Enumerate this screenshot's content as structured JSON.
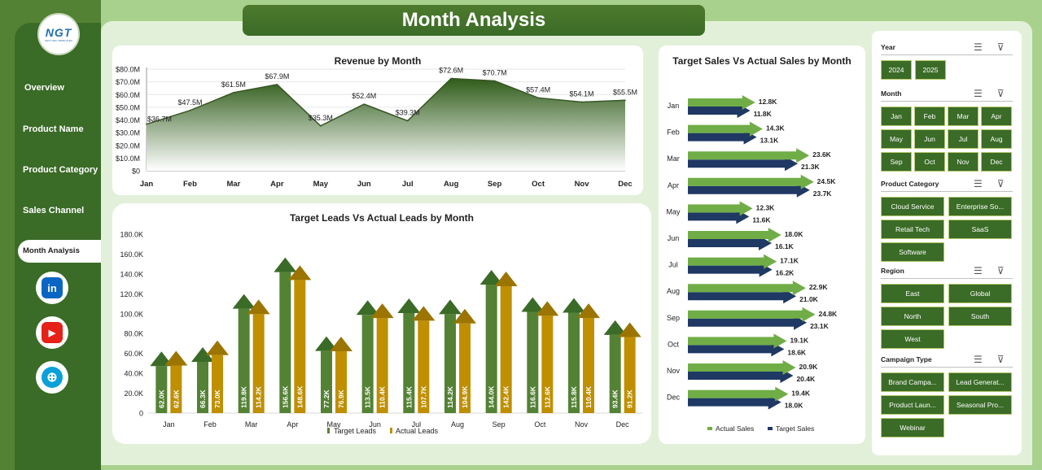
{
  "app": {
    "title": "Month Analysis",
    "logo_text": "NGT",
    "logo_sub": "NEXT GEN TEMPLATES"
  },
  "nav": {
    "items": [
      "Overview",
      "Product Name",
      "Product Category",
      "Sales Channel"
    ],
    "active": "Month Analysis"
  },
  "social": [
    {
      "name": "linkedin-icon",
      "glyph": "in",
      "color": "#0a66c2"
    },
    {
      "name": "youtube-icon",
      "glyph": "▶",
      "color": "#e62117"
    },
    {
      "name": "globe-icon",
      "glyph": "⊕",
      "color": "#0aa0d8"
    }
  ],
  "colors": {
    "primary_green": "#3a6b27",
    "light_green": "#70ad47",
    "gold": "#bf8f00",
    "navy": "#1f3864",
    "background": "#a9d18e"
  },
  "months": [
    "Jan",
    "Feb",
    "Mar",
    "Apr",
    "May",
    "Jun",
    "Jul",
    "Aug",
    "Sep",
    "Oct",
    "Nov",
    "Dec"
  ],
  "slicers": {
    "year": {
      "label": "Year",
      "options": [
        "2024",
        "2025"
      ]
    },
    "month": {
      "label": "Month",
      "options": [
        "Jan",
        "Feb",
        "Mar",
        "Apr",
        "May",
        "Jun",
        "Jul",
        "Aug",
        "Sep",
        "Oct",
        "Nov",
        "Dec"
      ]
    },
    "product_category": {
      "label": "Product Category",
      "options": [
        "Cloud Service",
        "Enterprise So...",
        "Retail Tech",
        "SaaS",
        "Software"
      ]
    },
    "region": {
      "label": "Region",
      "options": [
        "East",
        "Global",
        "North",
        "South",
        "West"
      ]
    },
    "campaign_type": {
      "label": "Campaign Type",
      "options": [
        "Brand Campa...",
        "Lead Generat...",
        "Product Laun...",
        "Seasonal Pro...",
        "Webinar"
      ]
    }
  },
  "chart_data": [
    {
      "type": "area",
      "title": "Revenue by Month",
      "categories": [
        "Jan",
        "Feb",
        "Mar",
        "Apr",
        "May",
        "Jun",
        "Jul",
        "Aug",
        "Sep",
        "Oct",
        "Nov",
        "Dec"
      ],
      "values": [
        36.7,
        47.5,
        61.5,
        67.9,
        35.3,
        52.4,
        39.3,
        72.6,
        70.7,
        57.4,
        54.1,
        55.5
      ],
      "data_labels": [
        "$36.7M",
        "$47.5M",
        "$61.5M",
        "$67.9M",
        "$35.3M",
        "$52.4M",
        "$39.3M",
        "$72.6M",
        "$70.7M",
        "$57.4M",
        "$54.1M",
        "$55.5M"
      ],
      "ylim": [
        0,
        80
      ],
      "y_ticks": [
        "$0",
        "$10.0M",
        "$20.0M",
        "$30.0M",
        "$40.0M",
        "$50.0M",
        "$60.0M",
        "$70.0M",
        "$80.0M"
      ]
    },
    {
      "type": "bar",
      "title": "Target Leads Vs Actual Leads by Month",
      "categories": [
        "Jan",
        "Feb",
        "Mar",
        "Apr",
        "May",
        "Jun",
        "Jul",
        "Aug",
        "Sep",
        "Oct",
        "Nov",
        "Dec"
      ],
      "series": [
        {
          "name": "Target Leads",
          "values": [
            62.0,
            66.3,
            119.8,
            156.6,
            77.2,
            113.5,
            115.4,
            114.2,
            144.0,
            116.6,
            115.8,
            93.4
          ],
          "labels": [
            "62.0K",
            "66.3K",
            "119.8K",
            "156.6K",
            "77.2K",
            "113.5K",
            "115.4K",
            "114.2K",
            "144.0K",
            "116.6K",
            "115.8K",
            "93.4K"
          ]
        },
        {
          "name": "Actual Leads",
          "values": [
            62.6,
            73.0,
            114.2,
            148.6,
            76.9,
            110.4,
            107.7,
            104.9,
            142.4,
            112.6,
            110.4,
            91.2
          ],
          "labels": [
            "62.6K",
            "73.0K",
            "114.2K",
            "148.6K",
            "76.9K",
            "110.4K",
            "107.7K",
            "104.9K",
            "142.4K",
            "112.6K",
            "110.4K",
            "91.2K"
          ]
        }
      ],
      "ylim": [
        0,
        180
      ],
      "y_ticks": [
        "0",
        "20.0K",
        "40.0K",
        "60.0K",
        "80.0K",
        "100.0K",
        "120.0K",
        "140.0K",
        "160.0K",
        "180.0K"
      ],
      "legend": "bottom"
    },
    {
      "type": "bar",
      "orientation": "horizontal",
      "title": "Target Sales Vs Actual Sales by Month",
      "categories": [
        "Jan",
        "Feb",
        "Mar",
        "Apr",
        "May",
        "Jun",
        "Jul",
        "Aug",
        "Sep",
        "Oct",
        "Nov",
        "Dec"
      ],
      "series": [
        {
          "name": "Actual Sales",
          "values": [
            12.8,
            14.3,
            23.6,
            24.5,
            12.3,
            18.0,
            17.1,
            22.9,
            24.8,
            19.1,
            20.9,
            19.4
          ],
          "labels": [
            "12.8K",
            "14.3K",
            "23.6K",
            "24.5K",
            "12.3K",
            "18.0K",
            "17.1K",
            "22.9K",
            "24.8K",
            "19.1K",
            "20.9K",
            "19.4K"
          ]
        },
        {
          "name": "Target Sales",
          "values": [
            11.8,
            13.1,
            21.3,
            23.7,
            11.6,
            16.1,
            16.2,
            21.0,
            23.1,
            18.6,
            20.4,
            18.0
          ],
          "labels": [
            "11.8K",
            "13.1K",
            "21.3K",
            "23.7K",
            "11.6K",
            "16.1K",
            "16.2K",
            "21.0K",
            "23.1K",
            "18.6K",
            "20.4K",
            "18.0K"
          ]
        }
      ],
      "legend": "bottom"
    }
  ]
}
